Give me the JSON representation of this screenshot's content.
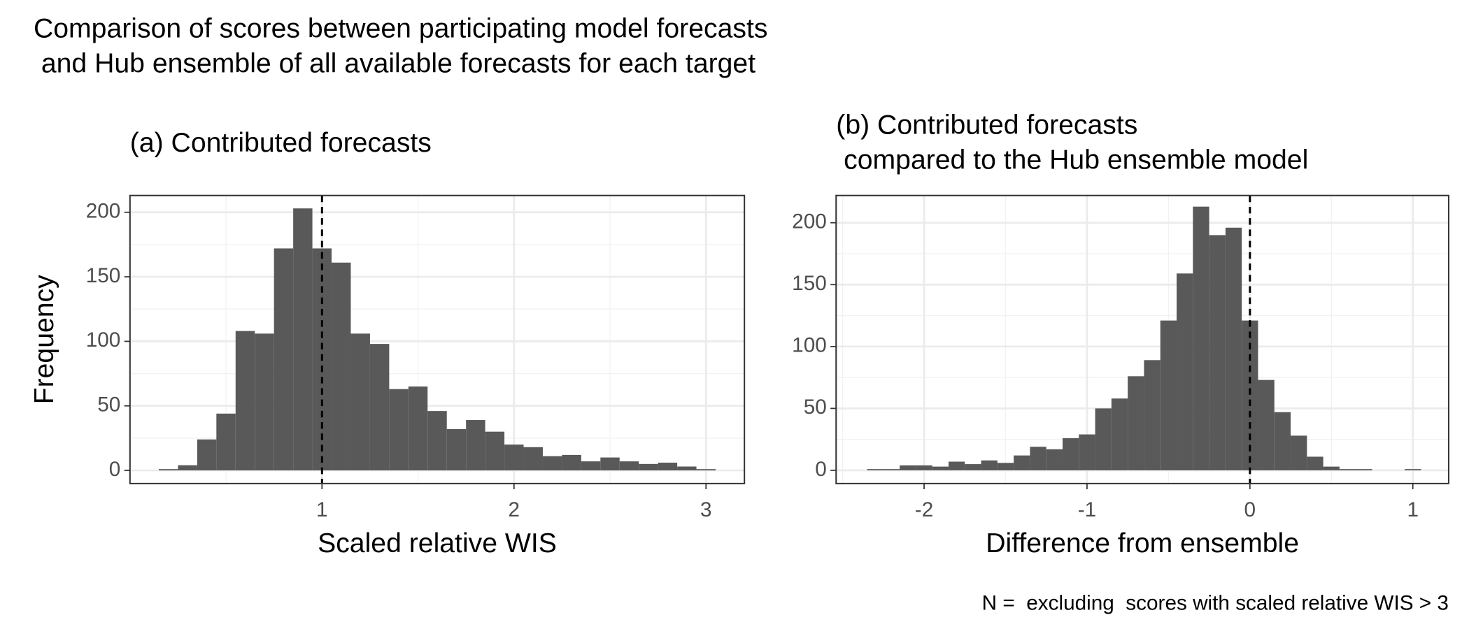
{
  "title": [
    "Comparison of scores between participating model forecasts",
    " and Hub ensemble of all available forecasts for each target"
  ],
  "footnote": "N =  excluding  scores with scaled relative WIS > 3",
  "chart_data": [
    {
      "type": "histogram",
      "subtitle": [
        "(a) Contributed forecasts"
      ],
      "xlabel": "Scaled relative WIS",
      "ylabel": "Frequency",
      "bins": [
        0.15,
        0.25,
        0.35,
        0.45,
        0.55,
        0.65,
        0.75,
        0.85,
        0.95,
        1.05,
        1.15,
        1.25,
        1.35,
        1.45,
        1.55,
        1.65,
        1.75,
        1.85,
        1.95,
        2.05,
        2.15,
        2.25,
        2.35,
        2.45,
        2.55,
        2.65,
        2.75,
        2.85,
        2.95,
        3.05
      ],
      "values": [
        1,
        4,
        24,
        44,
        108,
        106,
        172,
        203,
        172,
        161,
        106,
        98,
        63,
        65,
        46,
        32,
        39,
        30,
        20,
        18,
        11,
        12,
        7,
        10,
        7,
        5,
        6,
        3,
        1
      ],
      "color": "#595959",
      "vline": 1,
      "xlim": [
        0,
        3.2
      ],
      "xticks": [
        1,
        2,
        3
      ],
      "ylim": [
        -10.2,
        213
      ],
      "yticks": [
        0,
        50,
        100,
        150,
        200
      ],
      "grid": true
    },
    {
      "type": "histogram",
      "subtitle": [
        "(b) Contributed forecasts",
        " compared to the Hub ensemble model"
      ],
      "xlabel": "Difference from ensemble",
      "bins": [
        -2.35,
        -2.25,
        -2.15,
        -2.05,
        -1.95,
        -1.85,
        -1.75,
        -1.65,
        -1.55,
        -1.45,
        -1.35,
        -1.25,
        -1.15,
        -1.05,
        -0.95,
        -0.85,
        -0.75,
        -0.65,
        -0.55,
        -0.45,
        -0.35,
        -0.25,
        -0.15,
        -0.05,
        0.05,
        0.15,
        0.25,
        0.35,
        0.45,
        0.55,
        0.65,
        0.75,
        0.85,
        0.95,
        1.05
      ],
      "values": [
        1,
        1,
        4,
        4,
        3,
        7,
        5,
        8,
        6,
        12,
        19,
        17,
        26,
        29,
        50,
        58,
        76,
        89,
        121,
        159,
        213,
        190,
        196,
        121,
        73,
        47,
        28,
        11,
        3,
        1,
        1,
        0,
        0,
        1
      ],
      "color": "#595959",
      "vline": 0,
      "xlim": [
        -2.54,
        1.22
      ],
      "xticks": [
        -2,
        -1,
        0,
        1
      ],
      "ylim": [
        -10.7,
        222
      ],
      "yticks": [
        0,
        50,
        100,
        150,
        200
      ],
      "grid": true
    }
  ]
}
